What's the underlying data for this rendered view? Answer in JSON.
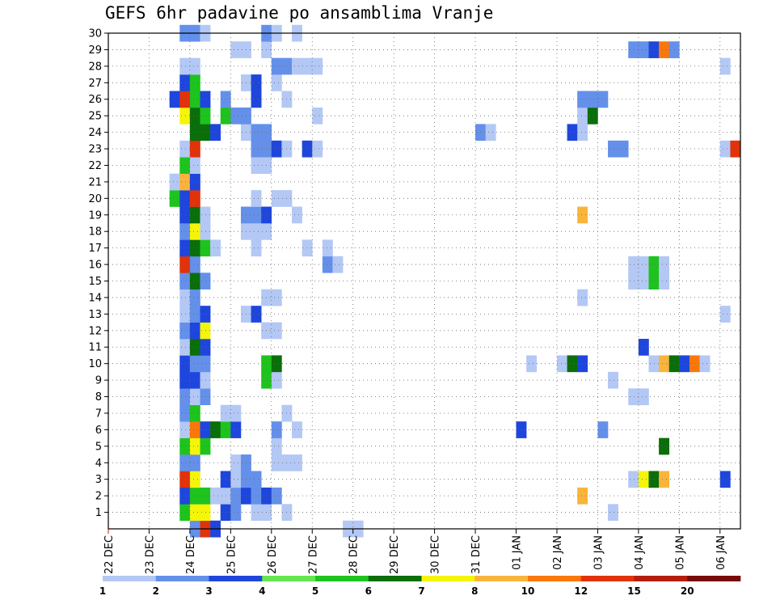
{
  "chart_data": {
    "type": "heatmap",
    "title": "GEFS 6hr padavine po ansamblima Vranje",
    "xlabel": "",
    "ylabel": "",
    "x_ticks": [
      "22 DEC",
      "23 DEC",
      "24 DEC",
      "25 DEC",
      "26 DEC",
      "27 DEC",
      "28 DEC",
      "29 DEC",
      "30 DEC",
      "31 DEC",
      "01 JAN",
      "02 JAN",
      "03 JAN",
      "04 JAN",
      "05 JAN",
      "06 JAN"
    ],
    "y_ticks": [
      1,
      2,
      3,
      4,
      5,
      6,
      7,
      8,
      9,
      10,
      11,
      12,
      13,
      14,
      15,
      16,
      17,
      18,
      19,
      20,
      21,
      22,
      23,
      24,
      25,
      26,
      27,
      28,
      29,
      30
    ],
    "ylim": [
      0,
      30
    ],
    "grid": true,
    "legend": {
      "placement": "bottom",
      "levels": [
        "1",
        "2",
        "3",
        "4",
        "5",
        "6",
        "7",
        "8",
        "10",
        "12",
        "15",
        "20"
      ],
      "colors": [
        "#b4c8f5",
        "#6490ea",
        "#1e46dc",
        "#64e650",
        "#1ec31e",
        "#0a6e0a",
        "#f5f50a",
        "#fab43c",
        "#fa780a",
        "#e1320a",
        "#b41e0a",
        "#780a0a"
      ]
    },
    "cells": [
      {
        "member": 0,
        "t": 8,
        "v": 2
      },
      {
        "member": 0,
        "t": 9,
        "v": 10
      },
      {
        "member": 0,
        "t": 10,
        "v": 3
      },
      {
        "member": 0,
        "t": 23,
        "v": 1
      },
      {
        "member": 0,
        "t": 24,
        "v": 1
      },
      {
        "member": 1,
        "t": 7,
        "v": 5
      },
      {
        "member": 1,
        "t": 8,
        "v": 7
      },
      {
        "member": 1,
        "t": 9,
        "v": 7
      },
      {
        "member": 1,
        "t": 11,
        "v": 3
      },
      {
        "member": 1,
        "t": 12,
        "v": 2
      },
      {
        "member": 1,
        "t": 14,
        "v": 1
      },
      {
        "member": 1,
        "t": 15,
        "v": 1
      },
      {
        "member": 1,
        "t": 17,
        "v": 1
      },
      {
        "member": 1,
        "t": 49,
        "v": 1
      },
      {
        "member": 2,
        "t": 7,
        "v": 3
      },
      {
        "member": 2,
        "t": 8,
        "v": 5
      },
      {
        "member": 2,
        "t": 9,
        "v": 5
      },
      {
        "member": 2,
        "t": 10,
        "v": 1
      },
      {
        "member": 2,
        "t": 11,
        "v": 1
      },
      {
        "member": 2,
        "t": 12,
        "v": 2
      },
      {
        "member": 2,
        "t": 13,
        "v": 3
      },
      {
        "member": 2,
        "t": 14,
        "v": 2
      },
      {
        "member": 2,
        "t": 15,
        "v": 3
      },
      {
        "member": 2,
        "t": 16,
        "v": 2
      },
      {
        "member": 2,
        "t": 46,
        "v": 8
      },
      {
        "member": 3,
        "t": 7,
        "v": 10
      },
      {
        "member": 3,
        "t": 8,
        "v": 7
      },
      {
        "member": 3,
        "t": 11,
        "v": 3
      },
      {
        "member": 3,
        "t": 12,
        "v": 1
      },
      {
        "member": 3,
        "t": 13,
        "v": 2
      },
      {
        "member": 3,
        "t": 14,
        "v": 2
      },
      {
        "member": 3,
        "t": 51,
        "v": 1
      },
      {
        "member": 3,
        "t": 52,
        "v": 7
      },
      {
        "member": 3,
        "t": 53,
        "v": 6
      },
      {
        "member": 3,
        "t": 54,
        "v": 8
      },
      {
        "member": 3,
        "t": 60,
        "v": 3
      },
      {
        "member": 4,
        "t": 7,
        "v": 2
      },
      {
        "member": 4,
        "t": 8,
        "v": 2
      },
      {
        "member": 4,
        "t": 12,
        "v": 1
      },
      {
        "member": 4,
        "t": 13,
        "v": 2
      },
      {
        "member": 4,
        "t": 16,
        "v": 1
      },
      {
        "member": 4,
        "t": 17,
        "v": 1
      },
      {
        "member": 4,
        "t": 18,
        "v": 1
      },
      {
        "member": 5,
        "t": 7,
        "v": 5
      },
      {
        "member": 5,
        "t": 8,
        "v": 7
      },
      {
        "member": 5,
        "t": 9,
        "v": 5
      },
      {
        "member": 5,
        "t": 16,
        "v": 1
      },
      {
        "member": 5,
        "t": 54,
        "v": 6
      },
      {
        "member": 6,
        "t": 7,
        "v": 1
      },
      {
        "member": 6,
        "t": 8,
        "v": 9
      },
      {
        "member": 6,
        "t": 9,
        "v": 3
      },
      {
        "member": 6,
        "t": 10,
        "v": 6
      },
      {
        "member": 6,
        "t": 11,
        "v": 5
      },
      {
        "member": 6,
        "t": 12,
        "v": 3
      },
      {
        "member": 6,
        "t": 16,
        "v": 2
      },
      {
        "member": 6,
        "t": 18,
        "v": 1
      },
      {
        "member": 6,
        "t": 40,
        "v": 3
      },
      {
        "member": 6,
        "t": 48,
        "v": 2
      },
      {
        "member": 7,
        "t": 7,
        "v": 2
      },
      {
        "member": 7,
        "t": 8,
        "v": 5
      },
      {
        "member": 7,
        "t": 11,
        "v": 1
      },
      {
        "member": 7,
        "t": 12,
        "v": 1
      },
      {
        "member": 7,
        "t": 17,
        "v": 1
      },
      {
        "member": 8,
        "t": 7,
        "v": 2
      },
      {
        "member": 8,
        "t": 8,
        "v": 1
      },
      {
        "member": 8,
        "t": 9,
        "v": 2
      },
      {
        "member": 8,
        "t": 51,
        "v": 1
      },
      {
        "member": 8,
        "t": 52,
        "v": 1
      },
      {
        "member": 9,
        "t": 7,
        "v": 3
      },
      {
        "member": 9,
        "t": 8,
        "v": 3
      },
      {
        "member": 9,
        "t": 9,
        "v": 1
      },
      {
        "member": 9,
        "t": 15,
        "v": 5
      },
      {
        "member": 9,
        "t": 16,
        "v": 1
      },
      {
        "member": 9,
        "t": 49,
        "v": 1
      },
      {
        "member": 10,
        "t": 7,
        "v": 3
      },
      {
        "member": 10,
        "t": 8,
        "v": 2
      },
      {
        "member": 10,
        "t": 9,
        "v": 2
      },
      {
        "member": 10,
        "t": 15,
        "v": 5
      },
      {
        "member": 10,
        "t": 16,
        "v": 6
      },
      {
        "member": 10,
        "t": 41,
        "v": 1
      },
      {
        "member": 10,
        "t": 44,
        "v": 1
      },
      {
        "member": 10,
        "t": 45,
        "v": 6
      },
      {
        "member": 10,
        "t": 46,
        "v": 3
      },
      {
        "member": 10,
        "t": 53,
        "v": 1
      },
      {
        "member": 10,
        "t": 54,
        "v": 8
      },
      {
        "member": 10,
        "t": 55,
        "v": 6
      },
      {
        "member": 10,
        "t": 56,
        "v": 3
      },
      {
        "member": 10,
        "t": 57,
        "v": 9
      },
      {
        "member": 10,
        "t": 58,
        "v": 1
      },
      {
        "member": 11,
        "t": 7,
        "v": 1
      },
      {
        "member": 11,
        "t": 8,
        "v": 6
      },
      {
        "member": 11,
        "t": 9,
        "v": 3
      },
      {
        "member": 11,
        "t": 52,
        "v": 3
      },
      {
        "member": 12,
        "t": 7,
        "v": 2
      },
      {
        "member": 12,
        "t": 8,
        "v": 3
      },
      {
        "member": 12,
        "t": 9,
        "v": 7
      },
      {
        "member": 12,
        "t": 15,
        "v": 1
      },
      {
        "member": 12,
        "t": 16,
        "v": 1
      },
      {
        "member": 13,
        "t": 7,
        "v": 1
      },
      {
        "member": 13,
        "t": 8,
        "v": 2
      },
      {
        "member": 13,
        "t": 9,
        "v": 3
      },
      {
        "member": 13,
        "t": 13,
        "v": 1
      },
      {
        "member": 13,
        "t": 14,
        "v": 3
      },
      {
        "member": 13,
        "t": 60,
        "v": 1
      },
      {
        "member": 14,
        "t": 7,
        "v": 1
      },
      {
        "member": 14,
        "t": 8,
        "v": 2
      },
      {
        "member": 14,
        "t": 15,
        "v": 1
      },
      {
        "member": 14,
        "t": 16,
        "v": 1
      },
      {
        "member": 14,
        "t": 46,
        "v": 1
      },
      {
        "member": 15,
        "t": 7,
        "v": 2
      },
      {
        "member": 15,
        "t": 8,
        "v": 6
      },
      {
        "member": 15,
        "t": 9,
        "v": 2
      },
      {
        "member": 15,
        "t": 51,
        "v": 1
      },
      {
        "member": 15,
        "t": 52,
        "v": 1
      },
      {
        "member": 15,
        "t": 53,
        "v": 5
      },
      {
        "member": 15,
        "t": 54,
        "v": 1
      },
      {
        "member": 16,
        "t": 7,
        "v": 10
      },
      {
        "member": 16,
        "t": 8,
        "v": 2
      },
      {
        "member": 16,
        "t": 21,
        "v": 2
      },
      {
        "member": 16,
        "t": 22,
        "v": 1
      },
      {
        "member": 16,
        "t": 51,
        "v": 1
      },
      {
        "member": 16,
        "t": 52,
        "v": 1
      },
      {
        "member": 16,
        "t": 53,
        "v": 5
      },
      {
        "member": 16,
        "t": 54,
        "v": 1
      },
      {
        "member": 17,
        "t": 7,
        "v": 3
      },
      {
        "member": 17,
        "t": 8,
        "v": 6
      },
      {
        "member": 17,
        "t": 9,
        "v": 5
      },
      {
        "member": 17,
        "t": 10,
        "v": 1
      },
      {
        "member": 17,
        "t": 14,
        "v": 1
      },
      {
        "member": 17,
        "t": 19,
        "v": 1
      },
      {
        "member": 17,
        "t": 21,
        "v": 1
      },
      {
        "member": 18,
        "t": 7,
        "v": 2
      },
      {
        "member": 18,
        "t": 8,
        "v": 7
      },
      {
        "member": 18,
        "t": 9,
        "v": 1
      },
      {
        "member": 18,
        "t": 13,
        "v": 1
      },
      {
        "member": 18,
        "t": 14,
        "v": 1
      },
      {
        "member": 18,
        "t": 15,
        "v": 1
      },
      {
        "member": 19,
        "t": 7,
        "v": 3
      },
      {
        "member": 19,
        "t": 8,
        "v": 6
      },
      {
        "member": 19,
        "t": 9,
        "v": 1
      },
      {
        "member": 19,
        "t": 13,
        "v": 2
      },
      {
        "member": 19,
        "t": 14,
        "v": 2
      },
      {
        "member": 19,
        "t": 15,
        "v": 3
      },
      {
        "member": 19,
        "t": 18,
        "v": 1
      },
      {
        "member": 19,
        "t": 46,
        "v": 8
      },
      {
        "member": 20,
        "t": 6,
        "v": 5
      },
      {
        "member": 20,
        "t": 7,
        "v": 3
      },
      {
        "member": 20,
        "t": 8,
        "v": 10
      },
      {
        "member": 20,
        "t": 14,
        "v": 1
      },
      {
        "member": 20,
        "t": 16,
        "v": 1
      },
      {
        "member": 20,
        "t": 17,
        "v": 1
      },
      {
        "member": 21,
        "t": 6,
        "v": 1
      },
      {
        "member": 21,
        "t": 7,
        "v": 8
      },
      {
        "member": 21,
        "t": 8,
        "v": 3
      },
      {
        "member": 22,
        "t": 7,
        "v": 5
      },
      {
        "member": 22,
        "t": 8,
        "v": 1
      },
      {
        "member": 22,
        "t": 14,
        "v": 1
      },
      {
        "member": 22,
        "t": 15,
        "v": 1
      },
      {
        "member": 23,
        "t": 7,
        "v": 1
      },
      {
        "member": 23,
        "t": 8,
        "v": 10
      },
      {
        "member": 23,
        "t": 14,
        "v": 2
      },
      {
        "member": 23,
        "t": 15,
        "v": 2
      },
      {
        "member": 23,
        "t": 16,
        "v": 3
      },
      {
        "member": 23,
        "t": 17,
        "v": 1
      },
      {
        "member": 23,
        "t": 19,
        "v": 3
      },
      {
        "member": 23,
        "t": 20,
        "v": 1
      },
      {
        "member": 23,
        "t": 49,
        "v": 2
      },
      {
        "member": 23,
        "t": 50,
        "v": 2
      },
      {
        "member": 23,
        "t": 60,
        "v": 1
      },
      {
        "member": 23,
        "t": 61,
        "v": 10
      },
      {
        "member": 24,
        "t": 8,
        "v": 6
      },
      {
        "member": 24,
        "t": 9,
        "v": 6
      },
      {
        "member": 24,
        "t": 10,
        "v": 3
      },
      {
        "member": 24,
        "t": 13,
        "v": 1
      },
      {
        "member": 24,
        "t": 14,
        "v": 2
      },
      {
        "member": 24,
        "t": 15,
        "v": 2
      },
      {
        "member": 24,
        "t": 36,
        "v": 2
      },
      {
        "member": 24,
        "t": 37,
        "v": 1
      },
      {
        "member": 24,
        "t": 45,
        "v": 3
      },
      {
        "member": 24,
        "t": 46,
        "v": 1
      },
      {
        "member": 25,
        "t": 7,
        "v": 7
      },
      {
        "member": 25,
        "t": 8,
        "v": 6
      },
      {
        "member": 25,
        "t": 9,
        "v": 5
      },
      {
        "member": 25,
        "t": 11,
        "v": 5
      },
      {
        "member": 25,
        "t": 12,
        "v": 2
      },
      {
        "member": 25,
        "t": 13,
        "v": 2
      },
      {
        "member": 25,
        "t": 20,
        "v": 1
      },
      {
        "member": 25,
        "t": 46,
        "v": 1
      },
      {
        "member": 25,
        "t": 47,
        "v": 6
      },
      {
        "member": 26,
        "t": 6,
        "v": 3
      },
      {
        "member": 26,
        "t": 7,
        "v": 10
      },
      {
        "member": 26,
        "t": 8,
        "v": 5
      },
      {
        "member": 26,
        "t": 9,
        "v": 3
      },
      {
        "member": 26,
        "t": 11,
        "v": 2
      },
      {
        "member": 26,
        "t": 14,
        "v": 3
      },
      {
        "member": 26,
        "t": 17,
        "v": 1
      },
      {
        "member": 26,
        "t": 46,
        "v": 2
      },
      {
        "member": 26,
        "t": 47,
        "v": 2
      },
      {
        "member": 26,
        "t": 48,
        "v": 2
      },
      {
        "member": 27,
        "t": 7,
        "v": 3
      },
      {
        "member": 27,
        "t": 8,
        "v": 5
      },
      {
        "member": 27,
        "t": 13,
        "v": 1
      },
      {
        "member": 27,
        "t": 14,
        "v": 3
      },
      {
        "member": 27,
        "t": 16,
        "v": 1
      },
      {
        "member": 28,
        "t": 7,
        "v": 1
      },
      {
        "member": 28,
        "t": 8,
        "v": 1
      },
      {
        "member": 28,
        "t": 16,
        "v": 2
      },
      {
        "member": 28,
        "t": 17,
        "v": 2
      },
      {
        "member": 28,
        "t": 18,
        "v": 1
      },
      {
        "member": 28,
        "t": 19,
        "v": 1
      },
      {
        "member": 28,
        "t": 20,
        "v": 1
      },
      {
        "member": 28,
        "t": 60,
        "v": 1
      },
      {
        "member": 29,
        "t": 12,
        "v": 1
      },
      {
        "member": 29,
        "t": 13,
        "v": 1
      },
      {
        "member": 29,
        "t": 15,
        "v": 1
      },
      {
        "member": 29,
        "t": 51,
        "v": 2
      },
      {
        "member": 29,
        "t": 52,
        "v": 2
      },
      {
        "member": 29,
        "t": 53,
        "v": 3
      },
      {
        "member": 29,
        "t": 54,
        "v": 9
      },
      {
        "member": 29,
        "t": 55,
        "v": 2
      },
      {
        "member": 30,
        "t": 7,
        "v": 2
      },
      {
        "member": 30,
        "t": 8,
        "v": 2
      },
      {
        "member": 30,
        "t": 9,
        "v": 1
      },
      {
        "member": 30,
        "t": 15,
        "v": 2
      },
      {
        "member": 30,
        "t": 16,
        "v": 1
      },
      {
        "member": 30,
        "t": 18,
        "v": 1
      }
    ]
  }
}
